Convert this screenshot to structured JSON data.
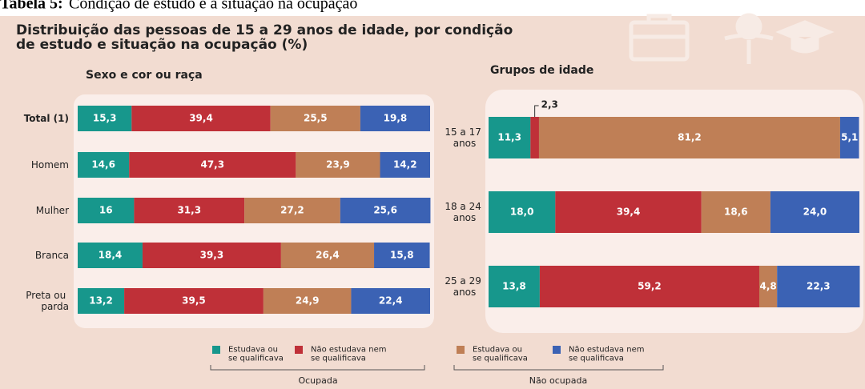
{
  "caption_label": "Tabela 5:",
  "caption_text": "Condição de estudo e a situação na ocupação",
  "title": "Distribuição das pessoas de 15 a 29 anos de idade, por condição de estudo e situação na ocupação (%)",
  "legend_groups": [
    "Ocupada",
    "Não ocupada"
  ],
  "chart_data": [
    {
      "type": "stacked_bar",
      "title": "Sexo e cor ou raça",
      "categories": [
        "Total (1)",
        "Homem",
        "Mulher",
        "Branca",
        "Preta ou parda"
      ],
      "xlim": [
        0,
        100
      ],
      "series": [
        {
          "name": "Estudava ou se qualificava",
          "color": "#17978c",
          "values": [
            15.3,
            14.6,
            16,
            18.4,
            13.2
          ],
          "value_labels": [
            "15,3",
            "14,6",
            "16",
            "18,4",
            "13,2"
          ]
        },
        {
          "name": "Não estudava nem se qualificava",
          "color": "#bf3038",
          "values": [
            39.4,
            47.3,
            31.3,
            39.3,
            39.5
          ],
          "value_labels": [
            "39,4",
            "47,3",
            "31,3",
            "39,3",
            "39,5"
          ]
        },
        {
          "name": "Estudava ou se qualificava",
          "color": "#bf7f56",
          "values": [
            25.5,
            23.9,
            27.2,
            26.4,
            24.9
          ],
          "value_labels": [
            "25,5",
            "23,9",
            "27,2",
            "26,4",
            "24,9"
          ]
        },
        {
          "name": "Não estudava nem se qualificava",
          "color": "#3b62b4",
          "values": [
            19.8,
            14.2,
            25.6,
            15.8,
            22.4
          ],
          "value_labels": [
            "19,8",
            "14,2",
            "25,6",
            "15,8",
            "22,4"
          ]
        }
      ]
    },
    {
      "type": "stacked_bar",
      "title": "Grupos de idade",
      "categories": [
        "15 a 17 anos",
        "18 a 24 anos",
        "25 a 29 anos"
      ],
      "xlim": [
        0,
        100
      ],
      "series": [
        {
          "color": "#17978c",
          "values": [
            11.3,
            18.0,
            13.8
          ],
          "value_labels": [
            "11,3",
            "18,0",
            "13,8"
          ]
        },
        {
          "color": "#bf3038",
          "values": [
            2.3,
            39.4,
            59.2
          ],
          "value_labels": [
            "2,3",
            "39,4",
            "59,2"
          ]
        },
        {
          "color": "#bf7f56",
          "values": [
            81.2,
            18.6,
            4.8
          ],
          "value_labels": [
            "81,2",
            "18,6",
            "4,8"
          ]
        },
        {
          "color": "#3b62b4",
          "values": [
            5.1,
            24.0,
            22.3
          ],
          "value_labels": [
            "5,1",
            "24,0",
            "22,3"
          ]
        }
      ]
    }
  ]
}
